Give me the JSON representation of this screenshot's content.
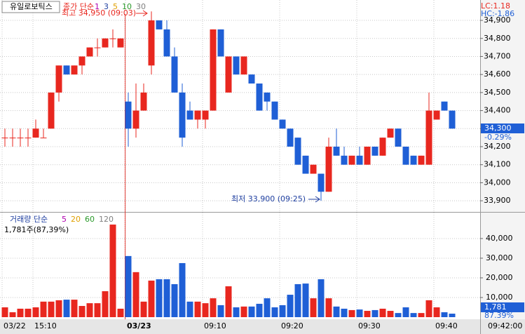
{
  "chart_data": {
    "type": "candlestick",
    "title": "유일로보틱스",
    "ma_label": "종가 단순",
    "ma_periods": [
      {
        "label": 1,
        "color": "#b000b0"
      },
      {
        "label": 3,
        "color": "#1f3fa0"
      },
      {
        "label": 5,
        "color": "#e0a000"
      },
      {
        "label": 10,
        "color": "#2a9a2a"
      },
      {
        "label": 30,
        "color": "#808080"
      }
    ],
    "lc_label": "LC:1.18",
    "hc_label": "HC:-1.86",
    "high_label": "최고 34,950 (09:03)",
    "low_label": "최저 33,900 (09:25)",
    "categories": [
      "03/22",
      null,
      null,
      null,
      "15:10",
      null,
      null,
      null,
      null,
      null,
      null,
      null,
      null,
      null,
      null,
      null,
      "03/23",
      null,
      null,
      null,
      null,
      null,
      null,
      null,
      null,
      null,
      "09:10",
      null,
      null,
      null,
      null,
      null,
      null,
      null,
      null,
      null,
      "09:20",
      null,
      null,
      null,
      null,
      null,
      null,
      null,
      null,
      null,
      "09:30",
      null,
      null,
      null,
      null,
      null,
      null,
      null,
      null,
      null,
      "09:40",
      null,
      null
    ],
    "open": [
      34250,
      34250,
      34250,
      34250,
      34250,
      34250,
      34300,
      34500,
      34650,
      34600,
      34650,
      34700,
      34750,
      34750,
      34800,
      34750,
      34450,
      34300,
      34400,
      34650,
      34900,
      34850,
      34700,
      34500,
      34400,
      34350,
      34350,
      34400,
      34850,
      34500,
      34700,
      34600,
      34600,
      34550,
      34500,
      34450,
      34350,
      34300,
      34250,
      34150,
      34050,
      34050,
      33950,
      34200,
      34150,
      34100,
      34150,
      34100,
      34200,
      34150,
      34250,
      34300,
      34200,
      34150,
      34100,
      34100,
      34350,
      34450,
      34400
    ],
    "high": [
      34300,
      34300,
      34300,
      34300,
      34350,
      34300,
      34500,
      34650,
      34650,
      34650,
      34700,
      34750,
      34800,
      34800,
      34850,
      34800,
      34500,
      34550,
      34550,
      34950,
      34900,
      34900,
      34750,
      34550,
      34450,
      34400,
      34400,
      34850,
      34850,
      34700,
      34700,
      34700,
      34600,
      34550,
      34500,
      34450,
      34350,
      34300,
      34250,
      34150,
      34100,
      34050,
      34250,
      34300,
      34200,
      34150,
      34200,
      34200,
      34200,
      34250,
      34300,
      34300,
      34200,
      34150,
      34150,
      34500,
      34400,
      34450,
      34400
    ],
    "low": [
      34200,
      34200,
      34200,
      34200,
      34250,
      34250,
      34300,
      34450,
      34600,
      34600,
      34600,
      34700,
      34700,
      34750,
      34750,
      34750,
      34200,
      34250,
      34400,
      34600,
      34850,
      34700,
      34500,
      34200,
      34350,
      34300,
      34300,
      34400,
      34700,
      34500,
      34600,
      34600,
      34550,
      34400,
      34400,
      34350,
      34300,
      34200,
      34100,
      34050,
      34050,
      33900,
      33950,
      34150,
      34100,
      34100,
      34100,
      34100,
      34150,
      34150,
      34250,
      34200,
      34100,
      34100,
      34100,
      34100,
      34350,
      34400,
      34300
    ],
    "close": [
      34250,
      34250,
      34250,
      34250,
      34300,
      34250,
      34500,
      34650,
      34600,
      34650,
      34700,
      34750,
      34750,
      34800,
      34800,
      34800,
      34300,
      34400,
      34500,
      34900,
      34850,
      34700,
      34500,
      34250,
      34350,
      34400,
      34400,
      34850,
      34700,
      34700,
      34600,
      34700,
      34550,
      34400,
      34450,
      34350,
      34300,
      34200,
      34100,
      34050,
      34100,
      33950,
      34200,
      34150,
      34100,
      34150,
      34100,
      34200,
      34150,
      34250,
      34300,
      34200,
      34100,
      34100,
      34150,
      34400,
      34400,
      34400,
      34300
    ],
    "up_color": "#e8271f",
    "down_color": "#1f5fd6",
    "ylim": [
      33846,
      35013
    ],
    "yticks": [
      {
        "value": 33900,
        "label": "33,900"
      },
      {
        "value": 34000,
        "label": "34,000"
      },
      {
        "value": 34100,
        "label": "34,100"
      },
      {
        "value": 34200,
        "label": "34,200"
      },
      {
        "value": 34300,
        "label": "34,300"
      },
      {
        "value": 34400,
        "label": "34,400"
      },
      {
        "value": 34500,
        "label": "34,500"
      },
      {
        "value": 34600,
        "label": "34,600"
      },
      {
        "value": 34700,
        "label": "34,700"
      },
      {
        "value": 34800,
        "label": "34,800"
      },
      {
        "value": 34900,
        "label": "34,900"
      }
    ],
    "last_price": {
      "value": 34300,
      "label": "34,300"
    },
    "last_change": "-0.29%",
    "volume_label": "거래량 단순",
    "volume_ma_periods": [
      {
        "label": 5,
        "color": "#b000b0"
      },
      {
        "label": 20,
        "color": "#e0a000"
      },
      {
        "label": 60,
        "color": "#2a9a2a"
      },
      {
        "label": 120,
        "color": "#808080"
      }
    ],
    "volume_info": "1,781주(87,39%)",
    "volume": [
      5000,
      2500,
      4300,
      4300,
      5000,
      7900,
      7900,
      8600,
      8900,
      8900,
      5700,
      7100,
      7100,
      13200,
      47100,
      4300,
      31100,
      22900,
      7900,
      18600,
      19300,
      19300,
      16800,
      27500,
      7900,
      7900,
      7100,
      9600,
      6100,
      15700,
      5000,
      5400,
      5400,
      6800,
      9600,
      5000,
      6100,
      11400,
      16800,
      17100,
      9600,
      19300,
      9600,
      5400,
      4300,
      3600,
      3900,
      3200,
      3600,
      4300,
      3200,
      2100,
      5000,
      2100,
      2100,
      8600,
      5000,
      2500,
      1781
    ],
    "vlim": [
      0,
      51400
    ],
    "vticks": [
      {
        "value": 10000,
        "label": "10,000"
      },
      {
        "value": 20000,
        "label": "20,000"
      },
      {
        "value": 30000,
        "label": "30,000"
      },
      {
        "value": 40000,
        "label": "40,000"
      }
    ],
    "last_volume": {
      "value": 1781,
      "label": "1,781"
    },
    "last_volume_ratio": "87.39%",
    "time": "09:42:00"
  }
}
